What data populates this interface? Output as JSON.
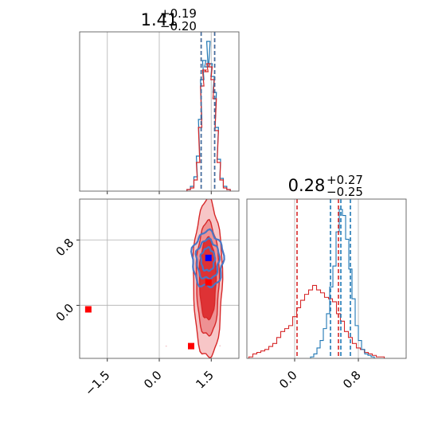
{
  "chart_data": [
    {
      "panel": "marginal-x",
      "type": "histogram",
      "title": {
        "main": "1.41",
        "sup": "+0.19",
        "sub": "−0.20"
      },
      "xlim": [
        -2.3,
        2.3
      ],
      "grid": true,
      "series": [
        {
          "color": "#1f77b4",
          "centers": [
            0.85,
            0.95,
            1.05,
            1.12,
            1.18,
            1.24,
            1.3,
            1.36,
            1.42,
            1.48,
            1.54,
            1.6,
            1.66,
            1.72,
            1.8,
            1.9,
            2.0
          ],
          "values": [
            0.01,
            0.03,
            0.09,
            0.22,
            0.45,
            0.7,
            0.82,
            0.78,
            0.94,
            0.8,
            0.72,
            0.62,
            0.4,
            0.2,
            0.08,
            0.03,
            0.01
          ]
        },
        {
          "color": "#d62728",
          "centers": [
            0.85,
            0.95,
            1.05,
            1.12,
            1.18,
            1.24,
            1.3,
            1.36,
            1.42,
            1.48,
            1.54,
            1.6,
            1.66,
            1.72,
            1.8,
            1.9,
            2.0
          ],
          "values": [
            0.01,
            0.02,
            0.07,
            0.18,
            0.4,
            0.66,
            0.76,
            0.75,
            0.8,
            0.78,
            0.7,
            0.58,
            0.38,
            0.18,
            0.07,
            0.02,
            0.01
          ]
        }
      ],
      "quantile_lines": [
        {
          "x": 1.21,
          "color": "#d62728"
        },
        {
          "x": 1.21,
          "color": "#1f77b4"
        },
        {
          "x": 1.6,
          "color": "#d62728"
        },
        {
          "x": 1.6,
          "color": "#1f77b4"
        }
      ]
    },
    {
      "panel": "marginal-y",
      "type": "histogram",
      "title": {
        "main": "0.28",
        "sup": "+0.27",
        "sub": "−0.25"
      },
      "xlim": [
        -0.6,
        1.4
      ],
      "grid": true,
      "series": [
        {
          "color": "#d62728",
          "centers": [
            -0.55,
            -0.5,
            -0.45,
            -0.4,
            -0.35,
            -0.3,
            -0.25,
            -0.2,
            -0.15,
            -0.1,
            -0.05,
            0.0,
            0.05,
            0.1,
            0.15,
            0.2,
            0.25,
            0.3,
            0.35,
            0.4,
            0.45,
            0.5,
            0.55,
            0.6,
            0.65,
            0.7,
            0.75,
            0.8,
            0.85,
            0.9,
            0.95,
            1.0,
            1.05,
            1.1
          ],
          "values": [
            0.01,
            0.03,
            0.04,
            0.05,
            0.06,
            0.08,
            0.1,
            0.14,
            0.18,
            0.2,
            0.22,
            0.28,
            0.34,
            0.39,
            0.43,
            0.46,
            0.49,
            0.46,
            0.44,
            0.41,
            0.4,
            0.38,
            0.3,
            0.25,
            0.18,
            0.14,
            0.1,
            0.07,
            0.06,
            0.04,
            0.03,
            0.02,
            0.01,
            0.01
          ]
        },
        {
          "color": "#1f77b4",
          "centers": [
            0.22,
            0.26,
            0.3,
            0.34,
            0.38,
            0.42,
            0.46,
            0.5,
            0.54,
            0.58,
            0.62,
            0.66,
            0.7,
            0.74,
            0.78,
            0.82,
            0.86,
            0.9,
            0.94,
            0.98
          ],
          "values": [
            0.01,
            0.03,
            0.07,
            0.12,
            0.2,
            0.3,
            0.48,
            0.62,
            0.85,
            1.0,
            0.96,
            0.8,
            0.6,
            0.4,
            0.22,
            0.12,
            0.06,
            0.03,
            0.02,
            0.01
          ]
        }
      ],
      "quantile_lines": [
        {
          "x": 0.03,
          "color": "#d62728"
        },
        {
          "x": 0.55,
          "color": "#d62728"
        },
        {
          "x": 0.45,
          "color": "#1f77b4"
        },
        {
          "x": 0.58,
          "color": "#1f77b4"
        },
        {
          "x": 0.7,
          "color": "#1f77b4"
        }
      ]
    },
    {
      "panel": "joint",
      "type": "scatter",
      "xlim": [
        -2.3,
        2.3
      ],
      "ylim": [
        -0.65,
        1.3
      ],
      "grid": true,
      "x_ticks": [
        {
          "value": -1.5,
          "label": "−1.5"
        },
        {
          "value": 0.0,
          "label": "0.0"
        },
        {
          "value": 1.5,
          "label": "1.5"
        }
      ],
      "y_ticks": [
        {
          "value": 0.0,
          "label": "0.0"
        },
        {
          "value": 0.8,
          "label": "0.8"
        }
      ],
      "y_grid_lines": [
        0.8,
        0.0
      ],
      "x_grid_lines": [
        -1.5,
        0.0,
        1.5
      ],
      "red_density": {
        "center": [
          1.4,
          0.32
        ],
        "levels": [
          {
            "sx": 0.42,
            "sy": 0.97,
            "fill": "#f7c6c7"
          },
          {
            "sx": 0.33,
            "sy": 0.7,
            "fill": "#ee9193"
          },
          {
            "sx": 0.24,
            "sy": 0.5,
            "fill": "#de3235"
          }
        ]
      },
      "blue_contours": {
        "center": [
          1.4,
          0.56
        ],
        "levels": [
          {
            "sx": 0.45,
            "sy": 0.34
          },
          {
            "sx": 0.33,
            "sy": 0.24
          },
          {
            "sx": 0.2,
            "sy": 0.14
          }
        ]
      },
      "markers": [
        {
          "x": -2.05,
          "y": -0.05,
          "color": "#ff0000"
        },
        {
          "x": 0.92,
          "y": -0.5,
          "color": "#ff0000"
        },
        {
          "x": 1.42,
          "y": 0.28,
          "color": "#ff0000"
        },
        {
          "x": 1.42,
          "y": 0.58,
          "color": "#0000ff"
        }
      ]
    }
  ]
}
